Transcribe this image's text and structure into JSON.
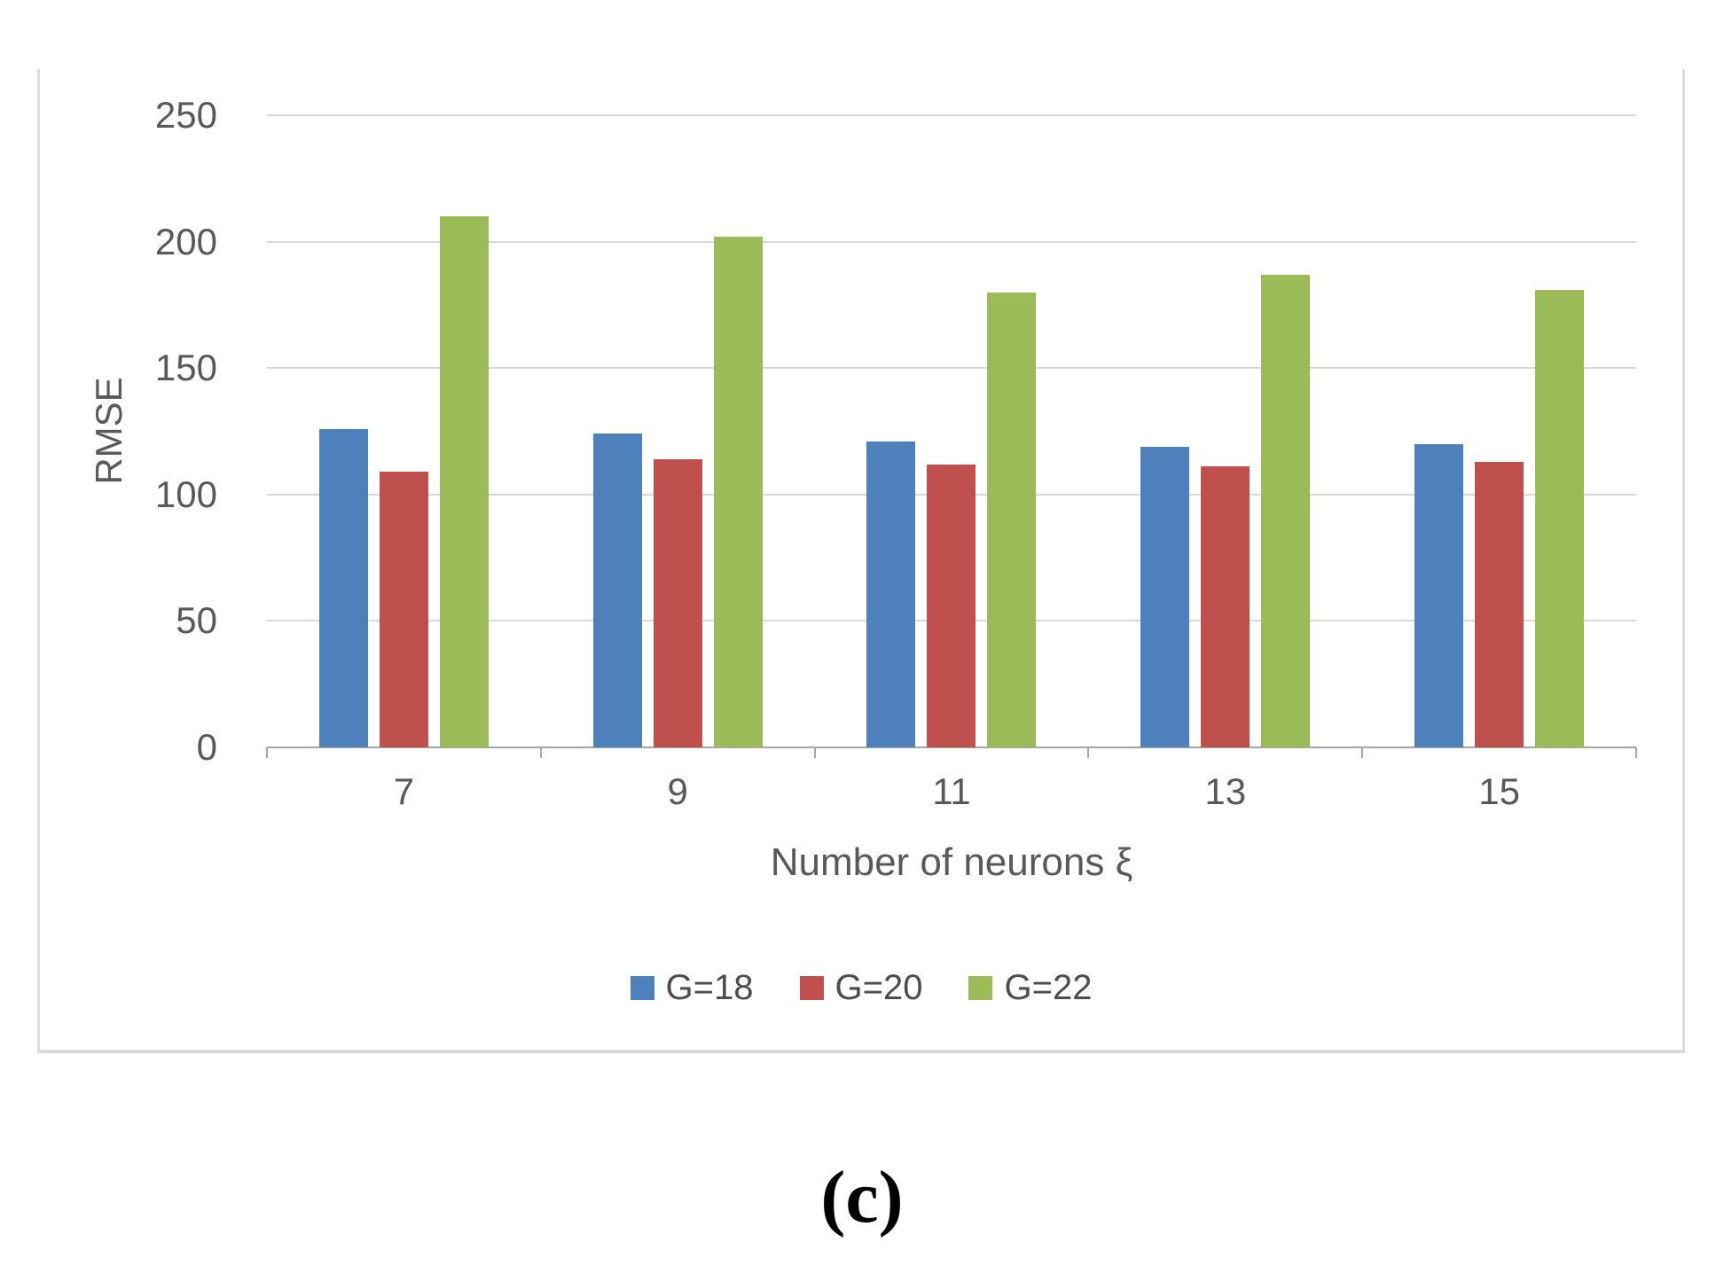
{
  "figure": {
    "caption": "(c)"
  },
  "chart_data": {
    "type": "bar",
    "title": "",
    "categories": [
      "7",
      "9",
      "11",
      "13",
      "15"
    ],
    "series": [
      {
        "name": "G=18",
        "color": "#4e80bc",
        "values": [
          126,
          124,
          121,
          119,
          120
        ]
      },
      {
        "name": "G=20",
        "color": "#c0504d",
        "values": [
          109,
          114,
          112,
          111,
          113
        ]
      },
      {
        "name": "G=22",
        "color": "#9bbb59",
        "values": [
          210,
          202,
          180,
          187,
          181
        ]
      }
    ],
    "xlabel": "Number of neurons ξ",
    "ylabel": "RMSE",
    "ylim": [
      0,
      250
    ],
    "ytick_step": 50,
    "ytick_labels": [
      "250",
      "200",
      "150",
      "100",
      "50",
      "0"
    ],
    "grid": true,
    "legend_position": "bottom",
    "colors": {
      "gridline": "#d9d9d9",
      "axis_line": "#a6a6a6",
      "tick_text": "#595959"
    }
  }
}
